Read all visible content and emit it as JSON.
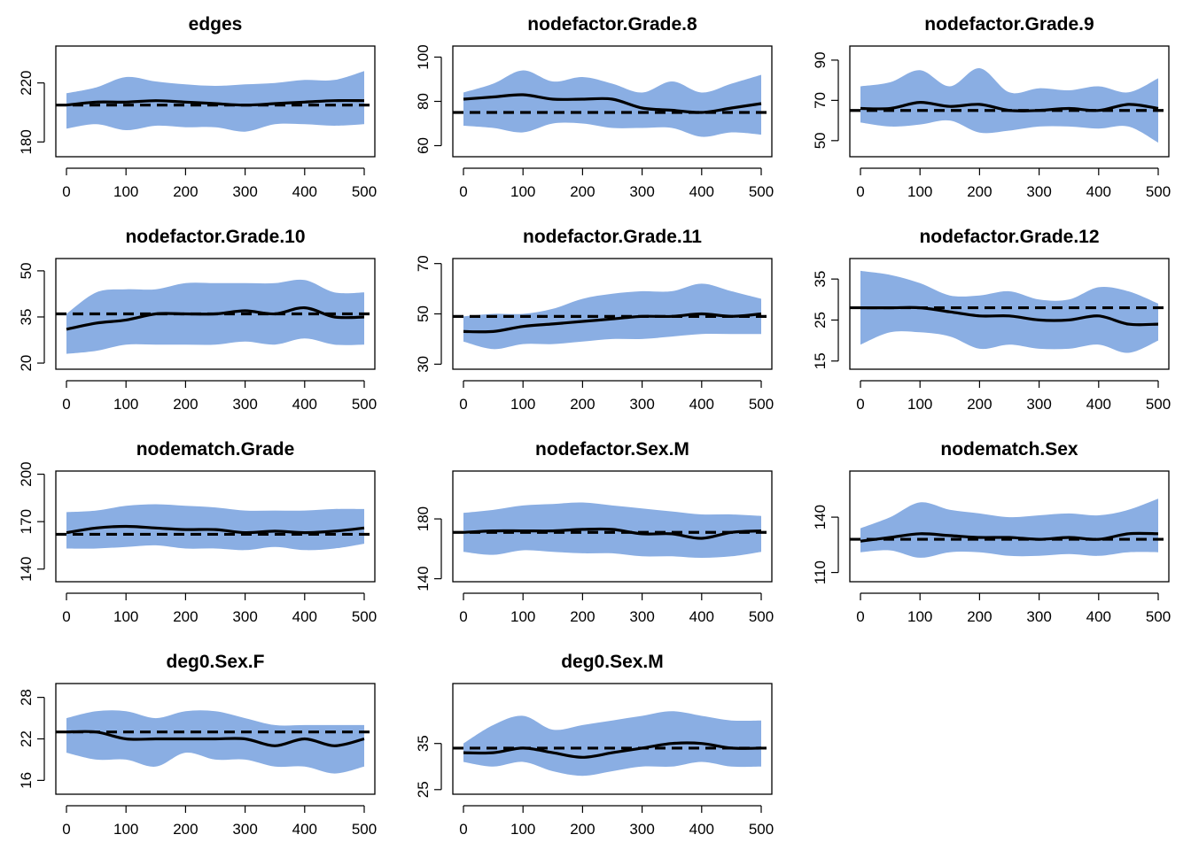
{
  "colors": {
    "band": "#8aaee3",
    "line": "#000000"
  },
  "x_ticks": [
    0,
    100,
    200,
    300,
    400,
    500
  ],
  "chart_data": [
    {
      "type": "area",
      "title": "edges",
      "xlabel": "",
      "ylabel": "",
      "xlim": [
        0,
        500
      ],
      "ylim": [
        170,
        245
      ],
      "y_ticks": [
        180,
        220
      ],
      "target": 205,
      "x": [
        0,
        50,
        100,
        150,
        200,
        250,
        300,
        350,
        400,
        450,
        500
      ],
      "series": [
        {
          "role": "upper",
          "values": [
            213,
            217,
            224,
            221,
            219,
            218,
            219,
            220,
            222,
            222,
            228
          ]
        },
        {
          "role": "mean",
          "values": [
            205,
            207,
            207,
            208,
            207,
            206,
            205,
            206,
            207,
            208,
            208
          ]
        },
        {
          "role": "lower",
          "values": [
            189,
            192,
            188,
            191,
            190,
            190,
            187,
            192,
            192,
            191,
            192
          ]
        }
      ]
    },
    {
      "type": "area",
      "title": "nodefactor.Grade.8",
      "xlabel": "",
      "ylabel": "",
      "xlim": [
        0,
        500
      ],
      "ylim": [
        55,
        105
      ],
      "y_ticks": [
        60,
        80,
        100
      ],
      "target": 75,
      "x": [
        0,
        50,
        100,
        150,
        200,
        250,
        300,
        350,
        400,
        450,
        500
      ],
      "series": [
        {
          "role": "upper",
          "values": [
            84,
            88,
            94,
            89,
            91,
            88,
            84,
            89,
            84,
            88,
            92
          ]
        },
        {
          "role": "mean",
          "values": [
            81,
            82,
            83,
            81,
            81,
            81,
            77,
            76,
            75,
            77,
            79
          ]
        },
        {
          "role": "lower",
          "values": [
            69,
            68,
            66,
            70,
            70,
            68,
            68,
            68,
            64,
            66,
            65
          ]
        }
      ]
    },
    {
      "type": "area",
      "title": "nodefactor.Grade.9",
      "xlabel": "",
      "ylabel": "",
      "xlim": [
        0,
        500
      ],
      "ylim": [
        42,
        97
      ],
      "y_ticks": [
        50,
        70,
        90
      ],
      "target": 65,
      "x": [
        0,
        50,
        100,
        150,
        200,
        250,
        300,
        350,
        400,
        450,
        500
      ],
      "series": [
        {
          "role": "upper",
          "values": [
            77,
            79,
            85,
            77,
            86,
            74,
            76,
            75,
            77,
            74,
            81
          ]
        },
        {
          "role": "mean",
          "values": [
            66,
            66,
            69,
            67,
            68,
            65,
            65,
            66,
            65,
            68,
            66
          ]
        },
        {
          "role": "lower",
          "values": [
            59,
            57,
            58,
            60,
            54,
            55,
            57,
            57,
            56,
            57,
            49
          ]
        }
      ]
    },
    {
      "type": "area",
      "title": "nodefactor.Grade.10",
      "xlabel": "",
      "ylabel": "",
      "xlim": [
        0,
        500
      ],
      "ylim": [
        18,
        54
      ],
      "y_ticks": [
        20,
        35,
        50
      ],
      "target": 36,
      "x": [
        0,
        50,
        100,
        150,
        200,
        250,
        300,
        350,
        400,
        450,
        500
      ],
      "series": [
        {
          "role": "upper",
          "values": [
            36,
            43,
            44,
            44,
            46,
            46,
            46,
            46,
            47,
            43,
            43
          ]
        },
        {
          "role": "mean",
          "values": [
            31,
            33,
            34,
            36,
            36,
            36,
            37,
            36,
            38,
            35,
            35
          ]
        },
        {
          "role": "lower",
          "values": [
            23,
            24,
            26,
            26,
            26,
            26,
            27,
            26,
            28,
            26,
            26
          ]
        }
      ]
    },
    {
      "type": "area",
      "title": "nodefactor.Grade.11",
      "xlabel": "",
      "ylabel": "",
      "xlim": [
        0,
        500
      ],
      "ylim": [
        28,
        72
      ],
      "y_ticks": [
        30,
        50,
        70
      ],
      "target": 49,
      "x": [
        0,
        50,
        100,
        150,
        200,
        250,
        300,
        350,
        400,
        450,
        500
      ],
      "series": [
        {
          "role": "upper",
          "values": [
            49,
            50,
            50,
            52,
            56,
            58,
            59,
            59,
            62,
            59,
            56
          ]
        },
        {
          "role": "mean",
          "values": [
            43,
            43,
            45,
            46,
            47,
            48,
            49,
            49,
            50,
            49,
            50
          ]
        },
        {
          "role": "lower",
          "values": [
            39,
            36,
            38,
            38,
            39,
            40,
            40,
            41,
            42,
            42,
            42
          ]
        }
      ]
    },
    {
      "type": "area",
      "title": "nodefactor.Grade.12",
      "xlabel": "",
      "ylabel": "",
      "xlim": [
        0,
        500
      ],
      "ylim": [
        13,
        40
      ],
      "y_ticks": [
        15,
        25,
        35
      ],
      "target": 28,
      "x": [
        0,
        50,
        100,
        150,
        200,
        250,
        300,
        350,
        400,
        450,
        500
      ],
      "series": [
        {
          "role": "upper",
          "values": [
            37,
            36,
            34,
            31,
            31,
            32,
            30,
            30,
            33,
            32,
            29
          ]
        },
        {
          "role": "mean",
          "values": [
            28,
            28,
            28,
            27,
            26,
            26,
            25,
            25,
            26,
            24,
            24
          ]
        },
        {
          "role": "lower",
          "values": [
            19,
            22,
            22,
            21,
            18,
            19,
            18,
            18,
            19,
            17,
            20
          ]
        }
      ]
    },
    {
      "type": "area",
      "title": "nodematch.Grade",
      "xlabel": "",
      "ylabel": "",
      "xlim": [
        0,
        500
      ],
      "ylim": [
        132,
        202
      ],
      "y_ticks": [
        140,
        170,
        200
      ],
      "target": 162,
      "x": [
        0,
        50,
        100,
        150,
        200,
        250,
        300,
        350,
        400,
        450,
        500
      ],
      "series": [
        {
          "role": "upper",
          "values": [
            176,
            177,
            180,
            181,
            180,
            179,
            177,
            177,
            177,
            178,
            178
          ]
        },
        {
          "role": "mean",
          "values": [
            163,
            166,
            167,
            166,
            165,
            165,
            163,
            164,
            163,
            164,
            166
          ]
        },
        {
          "role": "lower",
          "values": [
            153,
            153,
            154,
            155,
            153,
            153,
            152,
            154,
            152,
            153,
            156
          ]
        }
      ]
    },
    {
      "type": "area",
      "title": "nodefactor.Sex.M",
      "xlabel": "",
      "ylabel": "",
      "xlim": [
        0,
        500
      ],
      "ylim": [
        138,
        212
      ],
      "y_ticks": [
        140,
        180
      ],
      "target": 171,
      "x": [
        0,
        50,
        100,
        150,
        200,
        250,
        300,
        350,
        400,
        450,
        500
      ],
      "series": [
        {
          "role": "upper",
          "values": [
            184,
            186,
            189,
            190,
            191,
            189,
            187,
            185,
            183,
            183,
            182
          ]
        },
        {
          "role": "mean",
          "values": [
            171,
            172,
            172,
            172,
            173,
            173,
            170,
            170,
            167,
            171,
            172
          ]
        },
        {
          "role": "lower",
          "values": [
            158,
            156,
            159,
            158,
            157,
            157,
            155,
            155,
            154,
            155,
            158
          ]
        }
      ]
    },
    {
      "type": "area",
      "title": "nodematch.Sex",
      "xlabel": "",
      "ylabel": "",
      "xlim": [
        0,
        500
      ],
      "ylim": [
        105,
        165
      ],
      "y_ticks": [
        110,
        140
      ],
      "target": 128,
      "x": [
        0,
        50,
        100,
        150,
        200,
        250,
        300,
        350,
        400,
        450,
        500
      ],
      "series": [
        {
          "role": "upper",
          "values": [
            134,
            140,
            148,
            144,
            142,
            140,
            141,
            142,
            141,
            144,
            150
          ]
        },
        {
          "role": "mean",
          "values": [
            127,
            129,
            131,
            130,
            129,
            129,
            128,
            129,
            128,
            131,
            131
          ]
        },
        {
          "role": "lower",
          "values": [
            121,
            122,
            118,
            121,
            121,
            119,
            119,
            120,
            119,
            121,
            121
          ]
        }
      ]
    },
    {
      "type": "area",
      "title": "deg0.Sex.F",
      "xlabel": "",
      "ylabel": "",
      "xlim": [
        0,
        500
      ],
      "ylim": [
        14,
        30
      ],
      "y_ticks": [
        16,
        22,
        28
      ],
      "target": 23,
      "x": [
        0,
        50,
        100,
        150,
        200,
        250,
        300,
        350,
        400,
        450,
        500
      ],
      "series": [
        {
          "role": "upper",
          "values": [
            25,
            26,
            26,
            25,
            26,
            26,
            25,
            24,
            24,
            24,
            24
          ]
        },
        {
          "role": "mean",
          "values": [
            23,
            23,
            22,
            22,
            22,
            22,
            22,
            21,
            22,
            21,
            22
          ]
        },
        {
          "role": "lower",
          "values": [
            20,
            19,
            19,
            18,
            20,
            19,
            19,
            18,
            18,
            17,
            18
          ]
        }
      ]
    },
    {
      "type": "area",
      "title": "deg0.Sex.M",
      "xlabel": "",
      "ylabel": "",
      "xlim": [
        0,
        500
      ],
      "ylim": [
        24,
        48
      ],
      "y_ticks": [
        25,
        35
      ],
      "target": 34,
      "x": [
        0,
        50,
        100,
        150,
        200,
        250,
        300,
        350,
        400,
        450,
        500
      ],
      "series": [
        {
          "role": "upper",
          "values": [
            35,
            39,
            41,
            38,
            39,
            40,
            41,
            42,
            41,
            40,
            40
          ]
        },
        {
          "role": "mean",
          "values": [
            33,
            33,
            34,
            33,
            32,
            33,
            34,
            35,
            35,
            34,
            34
          ]
        },
        {
          "role": "lower",
          "values": [
            31,
            30,
            31,
            29,
            28,
            29,
            30,
            30,
            31,
            30,
            30
          ]
        }
      ]
    }
  ]
}
